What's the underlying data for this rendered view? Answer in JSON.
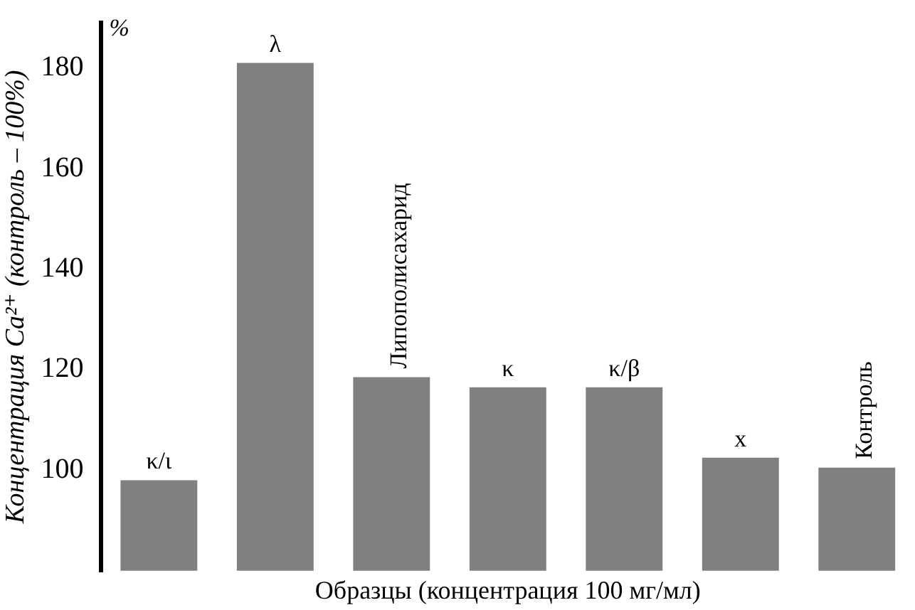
{
  "chart_data": {
    "type": "bar",
    "xlabel": "Образцы (концентрация 100 мг/мл)",
    "ylabel": "Концентрация Ca²⁺ (контроль – 100%)",
    "annotations": [
      "%"
    ],
    "categories": [
      "κ/ι",
      "λ",
      "Липополисахарид",
      "κ",
      "κ/β",
      "x",
      "Контроль"
    ],
    "values": [
      98,
      181,
      118.5,
      116.5,
      116.5,
      102.5,
      100.5
    ],
    "color": "#808080",
    "ylim": [
      80,
      189
    ],
    "yticks": [
      100,
      120,
      140,
      160,
      180
    ],
    "grid": false,
    "legend": false
  }
}
